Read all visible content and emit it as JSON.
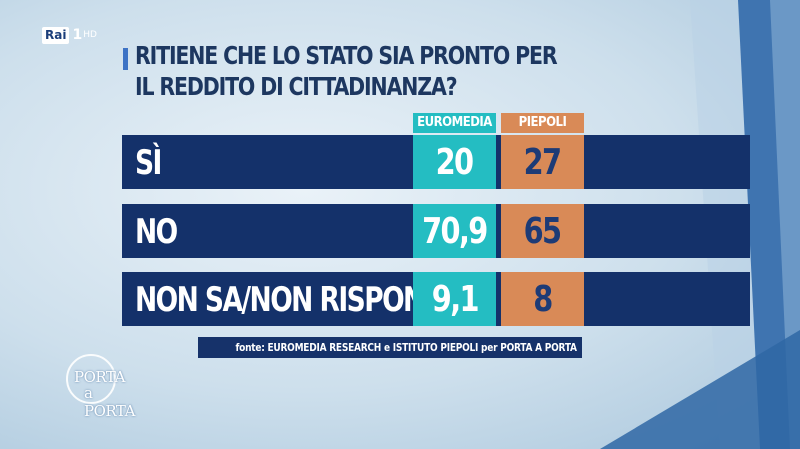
{
  "channel": {
    "logo_text": "Rai",
    "channel_number": "1",
    "hd_label": "HD"
  },
  "show": {
    "logo_line1": "PORTA",
    "logo_line2": "a PORTA"
  },
  "colors": {
    "euromedia": "#24bdc2",
    "piepoli": "#d98a57",
    "row_band": "#14316a",
    "background": "#cddfec",
    "title": "#1d3760",
    "accent": "#3d73c5"
  },
  "chart_data": {
    "type": "table",
    "title_lines": [
      "RITIENE CHE LO STATO SIA PRONTO PER",
      "IL REDDITO DI CITTADINANZA?"
    ],
    "columns": [
      "EUROMEDIA",
      "PIEPOLI"
    ],
    "rows": [
      {
        "label": "SÌ",
        "values": [
          "20",
          "27"
        ]
      },
      {
        "label": "NO",
        "values": [
          "70,9",
          "65"
        ]
      },
      {
        "label": "NON SA/NON RISPONDE",
        "values": [
          "9,1",
          "8"
        ]
      }
    ],
    "series": [
      {
        "name": "EUROMEDIA",
        "values": [
          20,
          70.9,
          9.1
        ]
      },
      {
        "name": "PIEPOLI",
        "values": [
          27,
          65,
          8
        ]
      }
    ],
    "source": "fonte: EUROMEDIA RESEARCH e ISTITUTO PIEPOLI per PORTA A PORTA"
  }
}
